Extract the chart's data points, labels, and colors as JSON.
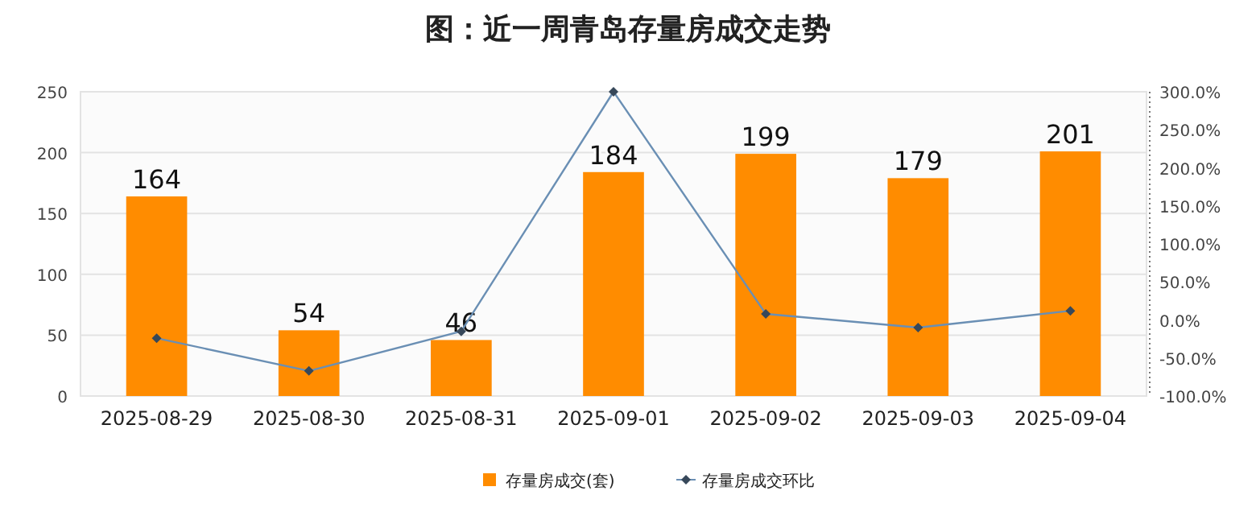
{
  "chart_data": {
    "type": "bar",
    "title": "图：近一周青岛存量房成交走势",
    "categories": [
      "2025-08-29",
      "2025-08-30",
      "2025-08-31",
      "2025-09-01",
      "2025-09-02",
      "2025-09-03",
      "2025-09-04"
    ],
    "series": [
      {
        "name": "存量房成交(套)",
        "color": "#ff8c00",
        "values": [
          164,
          54,
          46,
          184,
          199,
          179,
          201
        ],
        "value_labels": [
          "164",
          "54",
          "46",
          "184",
          "199",
          "179",
          "201"
        ]
      },
      {
        "name": "存量房成交环比",
        "type": "line",
        "axis": "y2",
        "color": "#6a8fb4",
        "marker": "diamond",
        "values": [
          -24,
          -67,
          -15,
          300,
          8,
          -10,
          12
        ]
      }
    ],
    "ylim": [
      0,
      250
    ],
    "yticks": [
      0,
      50,
      100,
      150,
      200,
      250
    ],
    "y2lim": [
      -100,
      300
    ],
    "y2ticks": [
      {
        "value": -100,
        "label": "-100.0%"
      },
      {
        "value": -50,
        "label": "-50.0%"
      },
      {
        "value": 0,
        "label": "0.0%"
      },
      {
        "value": 50,
        "label": "50.0%"
      },
      {
        "value": 100,
        "label": "100.0%"
      },
      {
        "value": 150,
        "label": "150.0%"
      },
      {
        "value": 200,
        "label": "200.0%"
      },
      {
        "value": 250,
        "label": "250.0%"
      },
      {
        "value": 300,
        "label": "300.0%"
      }
    ],
    "grid": "y",
    "legend": "bottom"
  }
}
